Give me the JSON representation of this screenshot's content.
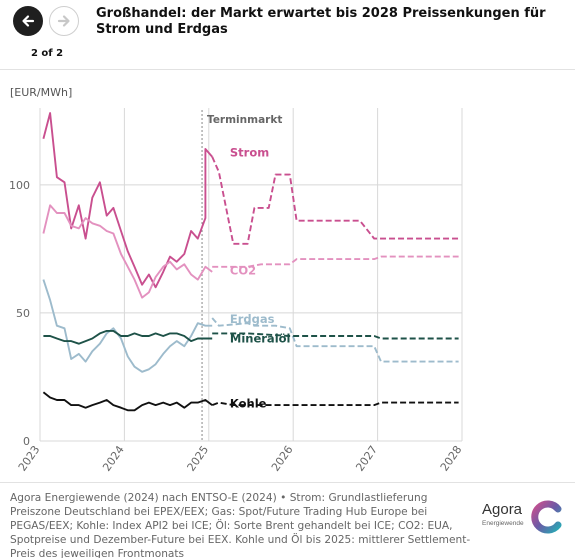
{
  "header": {
    "title": "Großhandel: der Markt erwartet bis 2028 Preissenkungen für Strom und Erdgas",
    "pager": "2 of 2",
    "prev_icon": "arrow-left-icon",
    "next_icon": "arrow-right-icon"
  },
  "colors": {
    "strom": "#c94f8f",
    "co2": "#e391bf",
    "erdgas": "#9dbbcc",
    "mineraloel": "#1e5248",
    "kohle": "#111111",
    "grid": "#d8d8d8"
  },
  "chart_data": {
    "type": "line",
    "unit_label": "[EUR/MWh]",
    "forward_label": "Terminmarkt",
    "ylim": [
      0,
      130
    ],
    "y_ticks": [
      0,
      50,
      100
    ],
    "x_range": [
      2023,
      2028
    ],
    "x_ticks": [
      "2023",
      "2024",
      "2025",
      "2026",
      "2027",
      "2028"
    ],
    "divider_x": 2024.92,
    "grid": true,
    "series": [
      {
        "name": "Strom",
        "key": "strom",
        "spot": [
          [
            2023.04,
            118
          ],
          [
            2023.12,
            128
          ],
          [
            2023.2,
            103
          ],
          [
            2023.29,
            101
          ],
          [
            2023.37,
            83
          ],
          [
            2023.46,
            92
          ],
          [
            2023.54,
            79
          ],
          [
            2023.62,
            95
          ],
          [
            2023.71,
            101
          ],
          [
            2023.79,
            88
          ],
          [
            2023.87,
            91
          ],
          [
            2023.96,
            82
          ],
          [
            2024.04,
            74
          ],
          [
            2024.12,
            68
          ],
          [
            2024.21,
            61
          ],
          [
            2024.29,
            65
          ],
          [
            2024.37,
            60
          ],
          [
            2024.46,
            66
          ],
          [
            2024.54,
            72
          ],
          [
            2024.62,
            70
          ],
          [
            2024.71,
            73
          ],
          [
            2024.79,
            82
          ],
          [
            2024.87,
            79
          ],
          [
            2024.96,
            87
          ],
          [
            2024.96,
            114
          ],
          [
            2025.04,
            111
          ]
        ],
        "forward": [
          [
            2025.04,
            111
          ],
          [
            2025.12,
            105
          ],
          [
            2025.29,
            77
          ],
          [
            2025.46,
            77
          ],
          [
            2025.54,
            91
          ],
          [
            2025.71,
            91
          ],
          [
            2025.79,
            104
          ],
          [
            2025.96,
            104
          ],
          [
            2026.04,
            86
          ],
          [
            2026.79,
            86
          ],
          [
            2026.96,
            79
          ],
          [
            2027.96,
            79
          ]
        ]
      },
      {
        "name": "CO2",
        "key": "co2",
        "spot": [
          [
            2023.04,
            81
          ],
          [
            2023.12,
            92
          ],
          [
            2023.2,
            89
          ],
          [
            2023.29,
            89
          ],
          [
            2023.37,
            84
          ],
          [
            2023.46,
            83
          ],
          [
            2023.54,
            87
          ],
          [
            2023.62,
            85
          ],
          [
            2023.71,
            84
          ],
          [
            2023.79,
            82
          ],
          [
            2023.87,
            81
          ],
          [
            2023.96,
            73
          ],
          [
            2024.04,
            68
          ],
          [
            2024.12,
            63
          ],
          [
            2024.21,
            56
          ],
          [
            2024.29,
            58
          ],
          [
            2024.37,
            64
          ],
          [
            2024.46,
            68
          ],
          [
            2024.54,
            70
          ],
          [
            2024.62,
            67
          ],
          [
            2024.71,
            69
          ],
          [
            2024.79,
            65
          ],
          [
            2024.87,
            63
          ],
          [
            2024.96,
            68
          ],
          [
            2025.04,
            66
          ]
        ],
        "forward": [
          [
            2025.04,
            68
          ],
          [
            2025.46,
            68
          ],
          [
            2025.62,
            69
          ],
          [
            2025.96,
            69
          ],
          [
            2026.04,
            71
          ],
          [
            2026.96,
            71
          ],
          [
            2027.04,
            72
          ],
          [
            2027.96,
            72
          ]
        ]
      },
      {
        "name": "Erdgas",
        "key": "erdgas",
        "spot": [
          [
            2023.04,
            63
          ],
          [
            2023.12,
            55
          ],
          [
            2023.2,
            45
          ],
          [
            2023.29,
            44
          ],
          [
            2023.37,
            32
          ],
          [
            2023.46,
            34
          ],
          [
            2023.54,
            31
          ],
          [
            2023.62,
            35
          ],
          [
            2023.71,
            38
          ],
          [
            2023.79,
            42
          ],
          [
            2023.87,
            44
          ],
          [
            2023.96,
            40
          ],
          [
            2024.04,
            33
          ],
          [
            2024.12,
            29
          ],
          [
            2024.21,
            27
          ],
          [
            2024.29,
            28
          ],
          [
            2024.37,
            30
          ],
          [
            2024.46,
            34
          ],
          [
            2024.54,
            37
          ],
          [
            2024.62,
            39
          ],
          [
            2024.71,
            37
          ],
          [
            2024.79,
            41
          ],
          [
            2024.87,
            46
          ],
          [
            2024.96,
            45
          ],
          [
            2025.04,
            45
          ]
        ],
        "forward": [
          [
            2025.04,
            48
          ],
          [
            2025.12,
            45
          ],
          [
            2025.46,
            46
          ],
          [
            2025.54,
            45
          ],
          [
            2025.79,
            45
          ],
          [
            2025.96,
            44
          ],
          [
            2026.04,
            37
          ],
          [
            2026.96,
            37
          ],
          [
            2027.04,
            31
          ],
          [
            2027.96,
            31
          ]
        ]
      },
      {
        "name": "Mineralöl",
        "key": "mineraloel",
        "spot": [
          [
            2023.04,
            41
          ],
          [
            2023.12,
            41
          ],
          [
            2023.2,
            40
          ],
          [
            2023.29,
            39
          ],
          [
            2023.37,
            39
          ],
          [
            2023.46,
            38
          ],
          [
            2023.54,
            39
          ],
          [
            2023.62,
            40
          ],
          [
            2023.71,
            42
          ],
          [
            2023.79,
            43
          ],
          [
            2023.87,
            43
          ],
          [
            2023.96,
            41
          ],
          [
            2024.04,
            41
          ],
          [
            2024.12,
            42
          ],
          [
            2024.21,
            41
          ],
          [
            2024.29,
            41
          ],
          [
            2024.37,
            42
          ],
          [
            2024.46,
            41
          ],
          [
            2024.54,
            42
          ],
          [
            2024.62,
            42
          ],
          [
            2024.71,
            41
          ],
          [
            2024.79,
            39
          ],
          [
            2024.87,
            40
          ],
          [
            2024.96,
            40
          ],
          [
            2025.04,
            40
          ]
        ],
        "forward": [
          [
            2025.04,
            42
          ],
          [
            2025.46,
            42
          ],
          [
            2025.96,
            41
          ],
          [
            2026.96,
            41
          ],
          [
            2027.04,
            40
          ],
          [
            2027.96,
            40
          ]
        ]
      },
      {
        "name": "Kohle",
        "key": "kohle",
        "spot": [
          [
            2023.04,
            19
          ],
          [
            2023.12,
            17
          ],
          [
            2023.2,
            16
          ],
          [
            2023.29,
            16
          ],
          [
            2023.37,
            14
          ],
          [
            2023.46,
            14
          ],
          [
            2023.54,
            13
          ],
          [
            2023.62,
            14
          ],
          [
            2023.71,
            15
          ],
          [
            2023.79,
            16
          ],
          [
            2023.87,
            14
          ],
          [
            2023.96,
            13
          ],
          [
            2024.04,
            12
          ],
          [
            2024.12,
            12
          ],
          [
            2024.21,
            14
          ],
          [
            2024.29,
            15
          ],
          [
            2024.37,
            14
          ],
          [
            2024.46,
            15
          ],
          [
            2024.54,
            14
          ],
          [
            2024.62,
            15
          ],
          [
            2024.71,
            13
          ],
          [
            2024.79,
            15
          ],
          [
            2024.87,
            15
          ],
          [
            2024.96,
            16
          ],
          [
            2025.04,
            14
          ]
        ],
        "forward": [
          [
            2025.04,
            14
          ],
          [
            2025.12,
            15
          ],
          [
            2025.29,
            14
          ],
          [
            2026.96,
            14
          ],
          [
            2027.04,
            15
          ],
          [
            2027.96,
            15
          ]
        ]
      }
    ]
  },
  "footer": {
    "source": "Agora Energiewende (2024) nach ENTSO-E (2024) • Strom: Grundlastlieferung Preiszone Deutschland bei EPEX/EEX; Gas: Spot/Future Trading Hub Europe bei PEGAS/EEX; Kohle: Index API2 bei ICE; Öl: Sorte Brent gehandelt bei ICE; CO2: EUA, Spotpreise und Dezember-Future bei EEX. Kohle und Öl bis 2025: mittlerer Settlement-Preis des jeweiligen Frontmonats",
    "logo_word": "Agora",
    "logo_sub": "Energiewende"
  }
}
